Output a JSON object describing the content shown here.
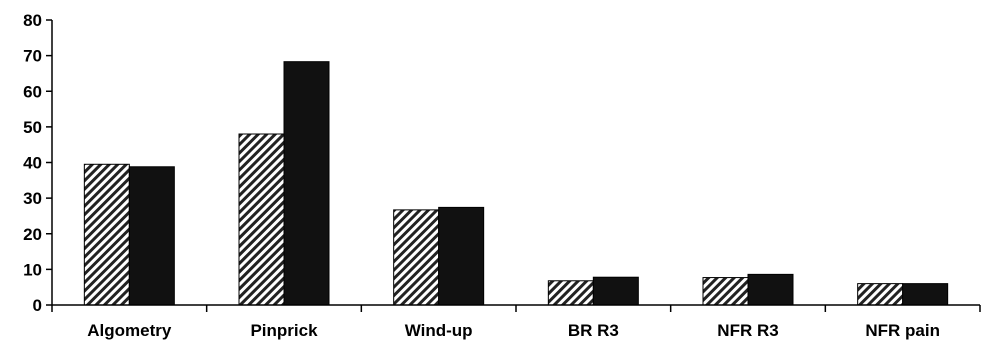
{
  "chart_data": {
    "type": "bar",
    "title": "",
    "xlabel": "",
    "ylabel": "",
    "ylim": [
      0,
      80
    ],
    "yticks": [
      "0",
      "10",
      "20",
      "30",
      "40",
      "50",
      "60",
      "70",
      "80"
    ],
    "categories": [
      "Algometry",
      "Pinprick",
      "Wind-up",
      "BR R3",
      "NFR R3",
      "NFR pain"
    ],
    "series": [
      {
        "values": [
          39.5,
          48,
          26.7,
          6.8,
          7.7,
          6.0
        ],
        "color": "#ffffff",
        "pattern": "diagonal-hatch"
      },
      {
        "values": [
          38.8,
          68.3,
          27.4,
          7.8,
          8.6,
          6.0
        ],
        "color": "#111111",
        "pattern": "solid"
      }
    ],
    "grid": false,
    "legend": "none"
  }
}
